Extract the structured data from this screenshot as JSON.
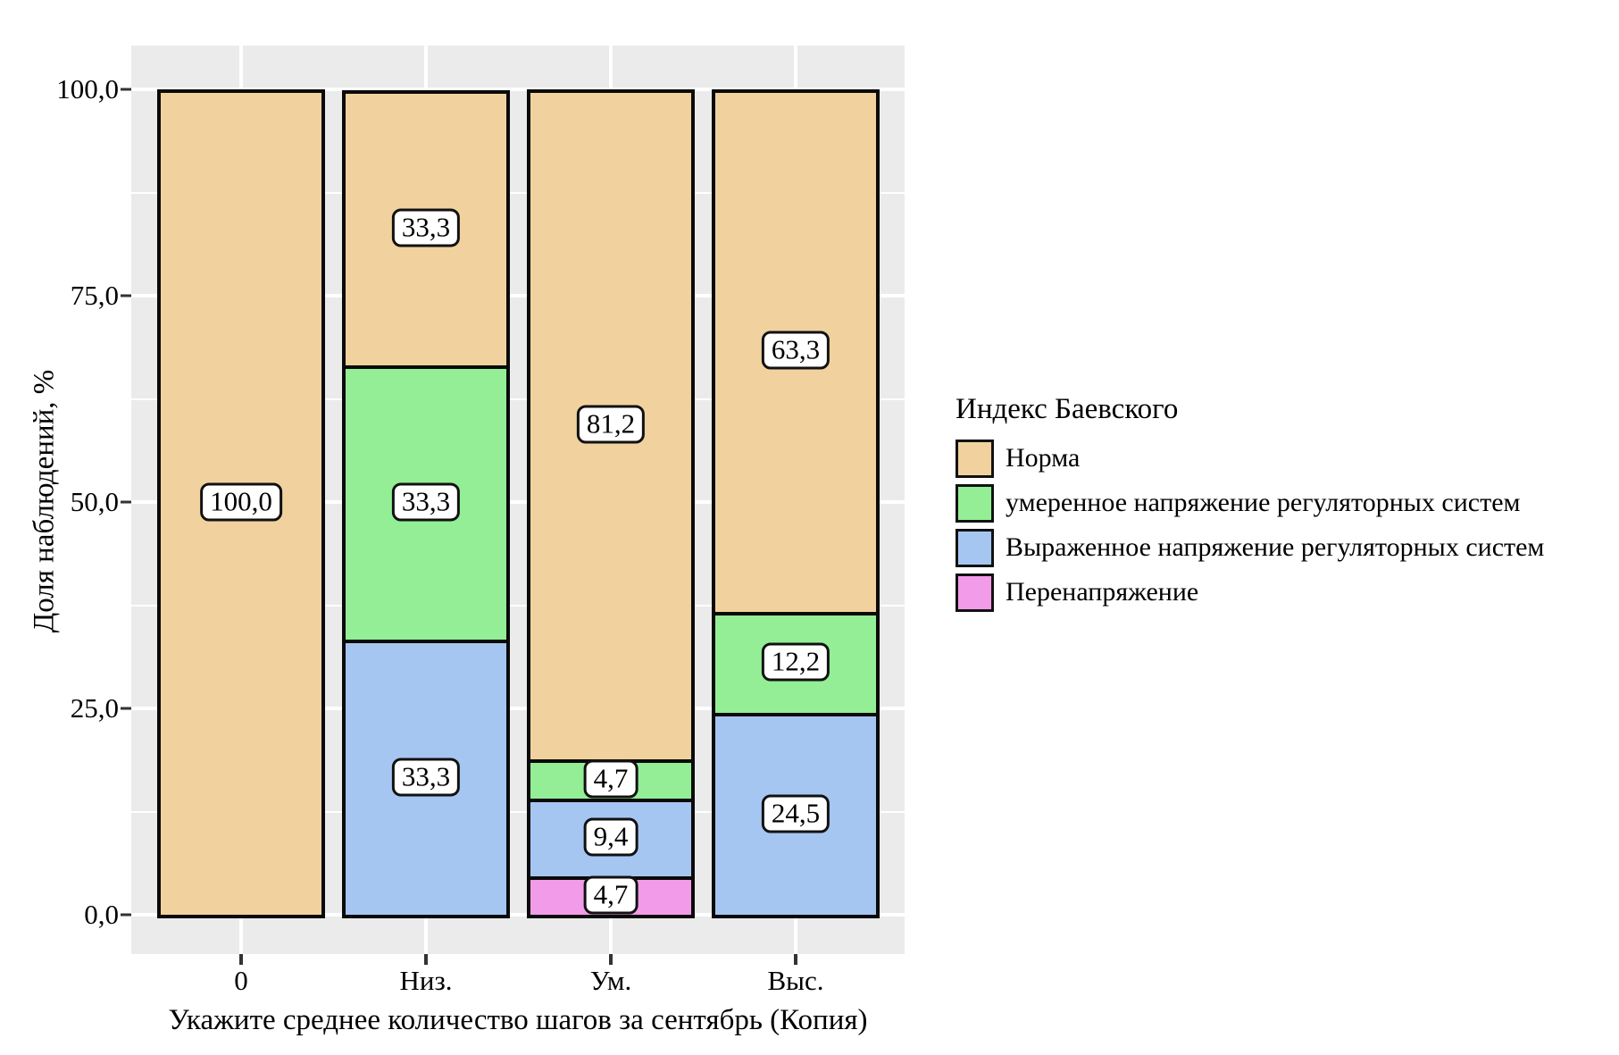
{
  "axes": {
    "y_title": "Доля наблюдений, %",
    "x_title": "Укажите среднее количество шагов за сентябрь (Копия)",
    "y_tick_labels": [
      "100,0",
      "75,0",
      "50,0",
      "25,0",
      "0,0"
    ],
    "x_tick_labels": [
      "0",
      "Низ.",
      "Ум.",
      "Выс."
    ]
  },
  "legend": {
    "title": "Индекс Баевского",
    "items": [
      {
        "label": "Норма",
        "color": "#F1D19E"
      },
      {
        "label": "умеренное напряжение регуляторных систем",
        "color": "#93EE95"
      },
      {
        "label": "Выраженное напряжение регуляторных систем",
        "color": "#A6C6F2"
      },
      {
        "label": "Перенапряжение",
        "color": "#F29BE8"
      }
    ]
  },
  "chart_data": {
    "type": "bar",
    "subtype": "stacked-percent",
    "title": "",
    "xlabel": "Укажите среднее количество шагов за сентябрь (Копия)",
    "ylabel": "Доля наблюдений, %",
    "ylim": [
      0,
      100
    ],
    "y_ticks": [
      100,
      75,
      50,
      25,
      0
    ],
    "grid": true,
    "legend_position": "right",
    "panel_bg": "#EBEBEB",
    "gridline_color": "#FFFFFF",
    "bar_border_color": "#0a0a0a",
    "categories": [
      "0",
      "Низ.",
      "Ум.",
      "Выс."
    ],
    "series": [
      {
        "name": "Норма",
        "color": "#F1D19E",
        "values": [
          100.0,
          33.3,
          81.2,
          63.3
        ],
        "labels": [
          "100,0",
          "33,3",
          "81,2",
          "63,3"
        ]
      },
      {
        "name": "умеренное напряжение регуляторных систем",
        "color": "#93EE95",
        "values": [
          0,
          33.3,
          4.7,
          12.2
        ],
        "labels": [
          null,
          "33,3",
          "4,7",
          "12,2"
        ]
      },
      {
        "name": "Выраженное напряжение регуляторных систем",
        "color": "#A6C6F2",
        "values": [
          0,
          33.3,
          9.4,
          24.5
        ],
        "labels": [
          null,
          "33,3",
          "9,4",
          "24,5"
        ]
      },
      {
        "name": "Перенапряжение",
        "color": "#F29BE8",
        "values": [
          0,
          0,
          4.7,
          0
        ],
        "labels": [
          null,
          null,
          "4,7",
          null
        ]
      }
    ],
    "stack_order_bottom_to_top": [
      "Перенапряжение",
      "Выраженное напряжение регуляторных систем",
      "умеренное напряжение регуляторных систем",
      "Норма"
    ]
  }
}
